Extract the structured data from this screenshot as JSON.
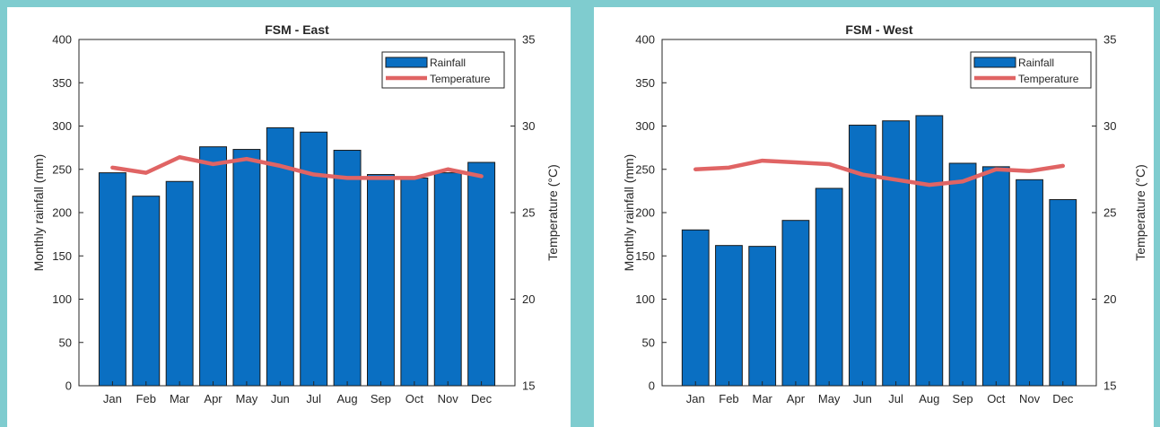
{
  "colors": {
    "rainfall_bar": "#0a6fc2",
    "temperature_line": "#e06464",
    "background": "#7fcccf"
  },
  "chart_data": [
    {
      "type": "bar",
      "title": "FSM - East",
      "categories": [
        "Jan",
        "Feb",
        "Mar",
        "Apr",
        "May",
        "Jun",
        "Jul",
        "Aug",
        "Sep",
        "Oct",
        "Nov",
        "Dec"
      ],
      "series": [
        {
          "name": "Rainfall",
          "type": "bar",
          "axis": "left",
          "values": [
            246,
            219,
            236,
            276,
            273,
            298,
            293,
            272,
            244,
            240,
            246,
            258
          ]
        },
        {
          "name": "Temperature",
          "type": "line",
          "axis": "right",
          "values": [
            27.6,
            27.3,
            28.2,
            27.8,
            28.1,
            27.7,
            27.2,
            27.0,
            27.0,
            27.0,
            27.5,
            27.1
          ]
        }
      ],
      "ylabel": "Monthly rainfall (mm)",
      "y2label": "Temperature (°C)",
      "ylim": [
        0,
        400
      ],
      "y2lim": [
        15,
        35
      ],
      "yticks": [
        0,
        50,
        100,
        150,
        200,
        250,
        300,
        350,
        400
      ],
      "y2ticks": [
        15,
        20,
        25,
        30,
        35
      ],
      "legend": "top-right",
      "grid": false
    },
    {
      "type": "bar",
      "title": "FSM - West",
      "categories": [
        "Jan",
        "Feb",
        "Mar",
        "Apr",
        "May",
        "Jun",
        "Jul",
        "Aug",
        "Sep",
        "Oct",
        "Nov",
        "Dec"
      ],
      "series": [
        {
          "name": "Rainfall",
          "type": "bar",
          "axis": "left",
          "values": [
            180,
            162,
            161,
            191,
            228,
            301,
            306,
            312,
            257,
            253,
            238,
            215
          ]
        },
        {
          "name": "Temperature",
          "type": "line",
          "axis": "right",
          "values": [
            27.5,
            27.6,
            28.0,
            27.9,
            27.8,
            27.2,
            26.9,
            26.6,
            26.8,
            27.5,
            27.4,
            27.7
          ]
        }
      ],
      "ylabel": "Monthly rainfall (mm)",
      "y2label": "Temperature (°C)",
      "ylim": [
        0,
        400
      ],
      "y2lim": [
        15,
        35
      ],
      "yticks": [
        0,
        50,
        100,
        150,
        200,
        250,
        300,
        350,
        400
      ],
      "y2ticks": [
        15,
        20,
        25,
        30,
        35
      ],
      "legend": "top-right",
      "grid": false
    }
  ]
}
